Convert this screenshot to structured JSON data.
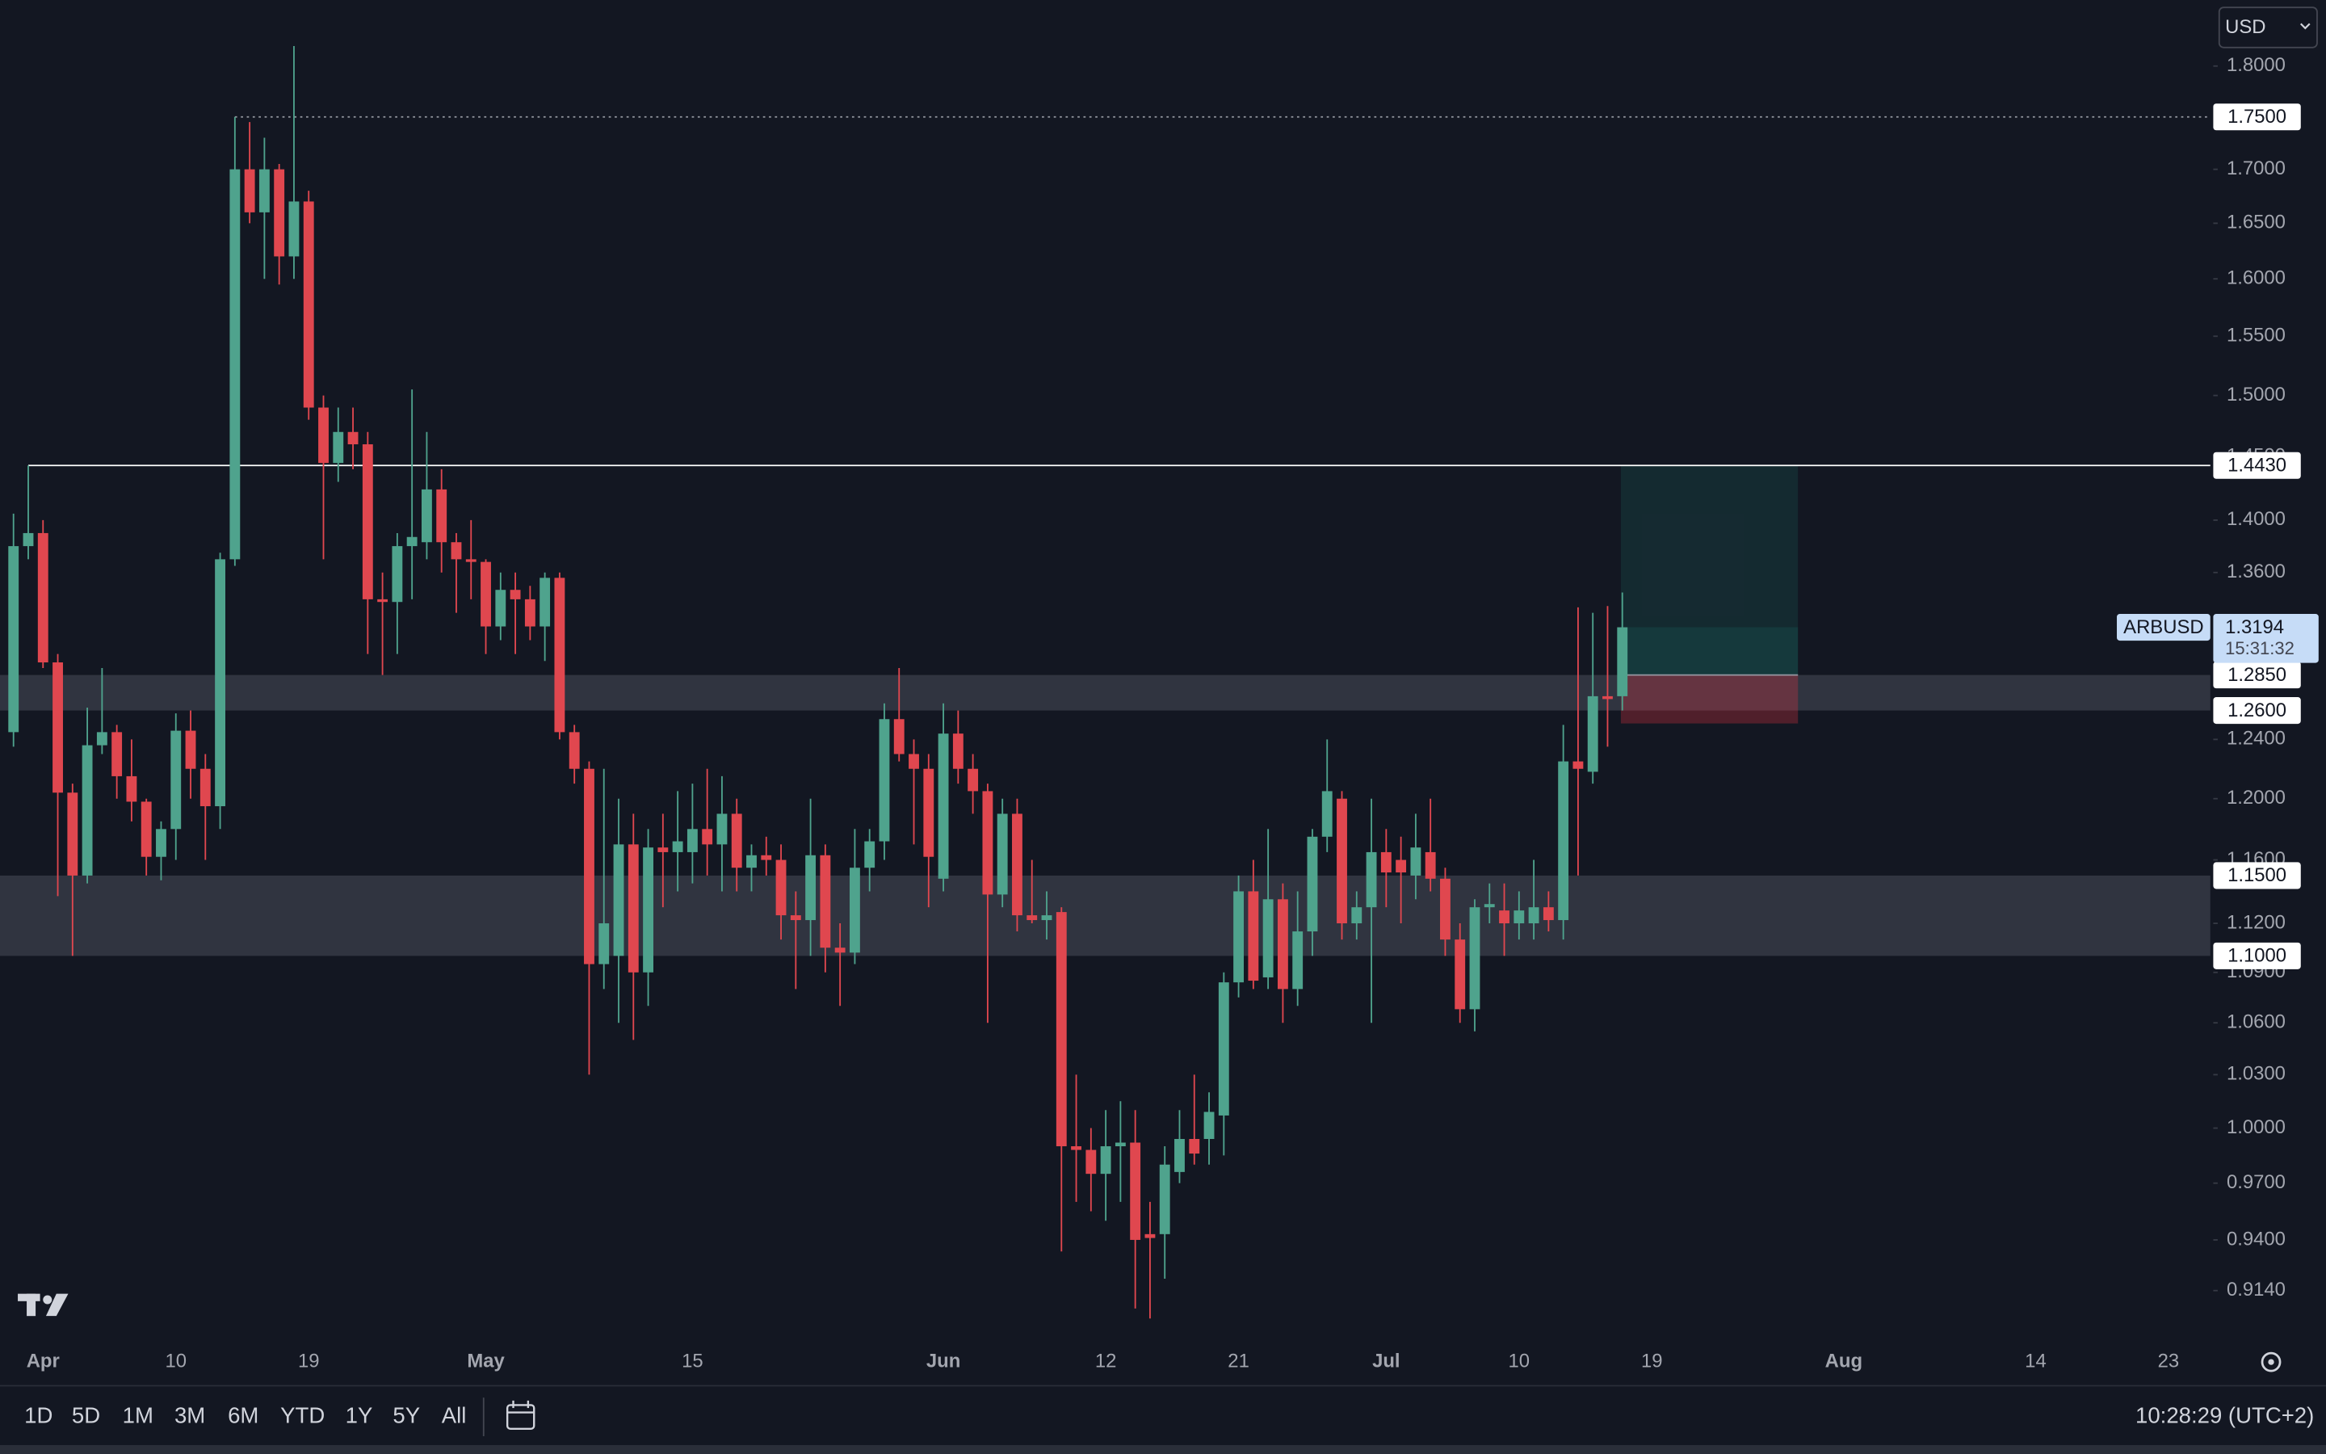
{
  "chart_data": {
    "type": "candlestick",
    "symbol": "ARBUSD",
    "currency": "USD",
    "countdown": "15:31:32",
    "log": true,
    "ylim": [
      0.888,
      1.867
    ],
    "yticks": [
      {
        "value": 1.8,
        "label": "1.8000"
      },
      {
        "value": 1.7,
        "label": "1.7000"
      },
      {
        "value": 1.65,
        "label": "1.6500"
      },
      {
        "value": 1.6,
        "label": "1.6000"
      },
      {
        "value": 1.55,
        "label": "1.5500"
      },
      {
        "value": 1.5,
        "label": "1.5000"
      },
      {
        "value": 1.45,
        "label": "1.4500"
      },
      {
        "value": 1.4,
        "label": "1.4000"
      },
      {
        "value": 1.36,
        "label": "1.3600"
      },
      {
        "value": 1.24,
        "label": "1.2400"
      },
      {
        "value": 1.2,
        "label": "1.2000"
      },
      {
        "value": 1.16,
        "label": "1.1600"
      },
      {
        "value": 1.12,
        "label": "1.1200"
      },
      {
        "value": 1.09,
        "label": "1.0900"
      },
      {
        "value": 1.06,
        "label": "1.0600"
      },
      {
        "value": 1.03,
        "label": "1.0300"
      },
      {
        "value": 1,
        "label": "1.0000"
      },
      {
        "value": 0.97,
        "label": "0.9700"
      },
      {
        "value": 0.94,
        "label": "0.9400"
      },
      {
        "value": 0.914,
        "label": "0.9140"
      }
    ],
    "categories": [
      null,
      null,
      "Apr",
      null,
      null,
      null,
      null,
      null,
      null,
      null,
      null,
      "10",
      null,
      null,
      null,
      null,
      null,
      null,
      null,
      null,
      "19",
      null,
      null,
      null,
      null,
      null,
      null,
      null,
      null,
      null,
      null,
      null,
      "May",
      null,
      null,
      null,
      null,
      null,
      null,
      null,
      null,
      null,
      null,
      null,
      null,
      null,
      "15",
      null,
      null,
      null,
      null,
      null,
      null,
      null,
      null,
      null,
      null,
      null,
      null,
      null,
      null,
      null,
      null,
      "Jun",
      null,
      null,
      null,
      null,
      null,
      null,
      null,
      null,
      null,
      null,
      "12",
      null,
      null,
      null,
      null,
      null,
      null,
      null,
      null,
      "21",
      null,
      null,
      null,
      null,
      null,
      null,
      null,
      null,
      null,
      "Jul",
      null,
      null,
      null,
      null,
      null,
      null,
      null,
      null,
      "10",
      null,
      null,
      null,
      null,
      null,
      null,
      null,
      null,
      "19",
      null,
      null,
      null,
      null,
      null,
      null,
      null,
      null,
      null,
      null,
      null,
      null,
      "Aug",
      null,
      null,
      null,
      null,
      null,
      null,
      null,
      null,
      null,
      null,
      null,
      null,
      "14",
      null,
      null,
      null,
      null,
      null,
      null,
      null,
      null,
      "23",
      null,
      null
    ],
    "series": [
      {
        "up_color": "#4fa38d",
        "down_color": "#e0474f",
        "open": [
          1.245,
          1.38,
          1.39,
          1.294,
          1.204,
          1.15,
          1.236,
          1.245,
          1.215,
          1.198,
          1.162,
          1.18,
          1.246,
          1.22,
          1.195,
          1.37,
          1.7,
          1.66,
          1.7,
          1.62,
          1.67,
          1.49,
          1.445,
          1.47,
          1.46,
          1.34,
          1.338,
          1.38,
          1.383,
          1.424,
          1.383,
          1.37,
          1.368,
          1.32,
          1.347,
          1.34,
          1.32,
          1.356,
          1.245,
          1.22,
          1.095,
          1.1,
          1.17,
          1.09,
          1.168,
          1.165,
          1.165,
          1.18,
          1.17,
          1.19,
          1.155,
          1.163,
          1.16,
          1.125,
          1.122,
          1.163,
          1.105,
          1.102,
          1.155,
          1.172,
          1.254,
          1.23,
          1.22,
          1.148,
          1.244,
          1.22,
          1.205,
          1.138,
          1.19,
          1.125,
          1.122,
          1.127,
          0.99,
          0.988,
          0.975,
          0.99,
          0.992,
          0.943,
          0.943,
          0.976,
          0.994,
          0.994,
          1.007,
          1.084,
          1.14,
          1.087,
          1.135,
          1.08,
          1.115,
          1.175,
          1.2,
          1.12,
          1.13,
          1.165,
          1.16,
          1.15,
          1.165,
          1.148,
          1.11,
          1.068,
          1.13,
          1.128,
          1.12,
          1.12,
          1.13,
          1.122,
          1.225,
          1.218,
          1.27,
          1.27,
          null,
          null,
          null,
          null,
          null,
          null,
          null,
          null,
          null,
          null,
          null,
          null,
          null,
          null,
          null,
          null,
          null,
          null,
          null,
          null,
          null,
          null,
          null,
          null,
          null,
          null,
          null,
          null,
          null,
          null,
          null,
          null,
          null,
          null,
          null,
          null,
          null,
          null,
          null
        ],
        "high": [
          1.405,
          1.443,
          1.4,
          1.3,
          1.21,
          1.262,
          1.29,
          1.25,
          1.24,
          1.2,
          1.185,
          1.258,
          1.26,
          1.23,
          1.375,
          1.75,
          1.745,
          1.73,
          1.705,
          1.82,
          1.68,
          1.5,
          1.49,
          1.49,
          1.47,
          1.36,
          1.39,
          1.505,
          1.47,
          1.44,
          1.39,
          1.4,
          1.37,
          1.36,
          1.36,
          1.35,
          1.36,
          1.36,
          1.25,
          1.225,
          1.22,
          1.2,
          1.19,
          1.18,
          1.19,
          1.205,
          1.21,
          1.22,
          1.215,
          1.2,
          1.17,
          1.175,
          1.17,
          1.14,
          1.2,
          1.17,
          1.12,
          1.18,
          1.18,
          1.265,
          1.29,
          1.24,
          1.23,
          1.265,
          1.26,
          1.23,
          1.21,
          1.2,
          1.2,
          1.16,
          1.14,
          1.13,
          1.03,
          1.0,
          1.01,
          1.015,
          1.01,
          0.96,
          0.99,
          1.01,
          1.03,
          1.02,
          1.09,
          1.15,
          1.16,
          1.18,
          1.145,
          1.14,
          1.18,
          1.24,
          1.205,
          1.14,
          1.2,
          1.18,
          1.175,
          1.19,
          1.2,
          1.155,
          1.12,
          1.135,
          1.145,
          1.145,
          1.14,
          1.16,
          1.14,
          1.25,
          1.334,
          1.33,
          1.335,
          1.345,
          null,
          null,
          null,
          null,
          null,
          null,
          null,
          null,
          null,
          null,
          null,
          null,
          null,
          null,
          null,
          null,
          null,
          null,
          null,
          null,
          null,
          null,
          null,
          null,
          null,
          null,
          null,
          null,
          null,
          null,
          null,
          null,
          null,
          null,
          null,
          null,
          null,
          null,
          null
        ],
        "low": [
          1.235,
          1.37,
          1.29,
          1.137,
          1.1,
          1.145,
          1.23,
          1.2,
          1.185,
          1.15,
          1.147,
          1.16,
          1.2,
          1.16,
          1.18,
          1.365,
          1.65,
          1.6,
          1.595,
          1.6,
          1.48,
          1.37,
          1.43,
          1.44,
          1.3,
          1.285,
          1.3,
          1.34,
          1.37,
          1.36,
          1.33,
          1.34,
          1.3,
          1.31,
          1.3,
          1.31,
          1.295,
          1.24,
          1.21,
          1.03,
          1.08,
          1.06,
          1.05,
          1.07,
          1.13,
          1.14,
          1.145,
          1.15,
          1.14,
          1.14,
          1.14,
          1.15,
          1.11,
          1.08,
          1.1,
          1.09,
          1.07,
          1.095,
          1.14,
          1.16,
          1.225,
          1.17,
          1.13,
          1.14,
          1.21,
          1.19,
          1.06,
          1.13,
          1.115,
          1.12,
          1.11,
          0.934,
          0.96,
          0.955,
          0.95,
          0.96,
          0.905,
          0.9,
          0.92,
          0.97,
          0.98,
          0.98,
          0.985,
          1.075,
          1.08,
          1.08,
          1.06,
          1.07,
          1.1,
          1.165,
          1.11,
          1.11,
          1.06,
          1.13,
          1.12,
          1.135,
          1.14,
          1.1,
          1.06,
          1.055,
          1.12,
          1.1,
          1.11,
          1.11,
          1.115,
          1.11,
          1.15,
          1.21,
          1.235,
          1.26,
          null,
          null,
          null,
          null,
          null,
          null,
          null,
          null,
          null,
          null,
          null,
          null,
          null,
          null,
          null,
          null,
          null,
          null,
          null,
          null,
          null,
          null,
          null,
          null,
          null,
          null,
          null,
          null,
          null,
          null,
          null,
          null,
          null,
          null,
          null,
          null,
          null,
          null,
          null
        ],
        "close": [
          1.38,
          1.39,
          1.294,
          1.204,
          1.15,
          1.236,
          1.245,
          1.215,
          1.198,
          1.162,
          1.18,
          1.246,
          1.22,
          1.195,
          1.37,
          1.7,
          1.66,
          1.7,
          1.62,
          1.67,
          1.49,
          1.445,
          1.47,
          1.46,
          1.34,
          1.338,
          1.38,
          1.387,
          1.424,
          1.383,
          1.37,
          1.368,
          1.32,
          1.347,
          1.34,
          1.32,
          1.356,
          1.245,
          1.22,
          1.095,
          1.12,
          1.17,
          1.09,
          1.168,
          1.165,
          1.172,
          1.18,
          1.17,
          1.19,
          1.155,
          1.163,
          1.16,
          1.125,
          1.122,
          1.163,
          1.105,
          1.102,
          1.155,
          1.172,
          1.254,
          1.23,
          1.22,
          1.162,
          1.244,
          1.22,
          1.205,
          1.138,
          1.19,
          1.125,
          1.122,
          1.125,
          0.99,
          0.988,
          0.975,
          0.99,
          0.992,
          0.94,
          0.941,
          0.98,
          0.994,
          0.986,
          1.009,
          1.084,
          1.14,
          1.085,
          1.135,
          1.08,
          1.115,
          1.175,
          1.205,
          1.12,
          1.13,
          1.165,
          1.152,
          1.152,
          1.168,
          1.148,
          1.11,
          1.068,
          1.13,
          1.132,
          1.12,
          1.128,
          1.13,
          1.122,
          1.225,
          1.22,
          1.27,
          1.268,
          1.3194,
          null,
          null,
          null,
          null,
          null,
          null,
          null,
          null,
          null,
          null,
          null,
          null,
          null,
          null,
          null,
          null,
          null,
          null,
          null,
          null,
          null,
          null,
          null,
          null,
          null,
          null,
          null,
          null,
          null,
          null,
          null,
          null,
          null,
          null,
          null,
          null,
          null,
          null,
          null
        ]
      }
    ],
    "levels": [
      {
        "value": 1.75,
        "label": "1.7500",
        "style": "dotted",
        "color": "#9598a1"
      },
      {
        "value": 1.443,
        "label": "1.4430",
        "style": "solid",
        "color": "#ffffff"
      }
    ],
    "zones": [
      {
        "top": {
          "value": 1.285,
          "label": "1.2850"
        },
        "bottom": {
          "value": 1.26,
          "label": "1.2600"
        },
        "color": "#363a45"
      },
      {
        "top": {
          "value": 1.15,
          "label": "1.1500"
        },
        "bottom": {
          "value": 1.1,
          "label": "1.1000"
        },
        "color": "#363a45"
      }
    ],
    "position": {
      "target": 1.443,
      "entry": 1.285,
      "stop": 1.251
    }
  },
  "toolbar": {
    "ranges": [
      "1D",
      "5D",
      "1M",
      "3M",
      "6M",
      "YTD",
      "1Y",
      "5Y",
      "All"
    ],
    "clock": "10:28:29 (UTC+2)"
  }
}
